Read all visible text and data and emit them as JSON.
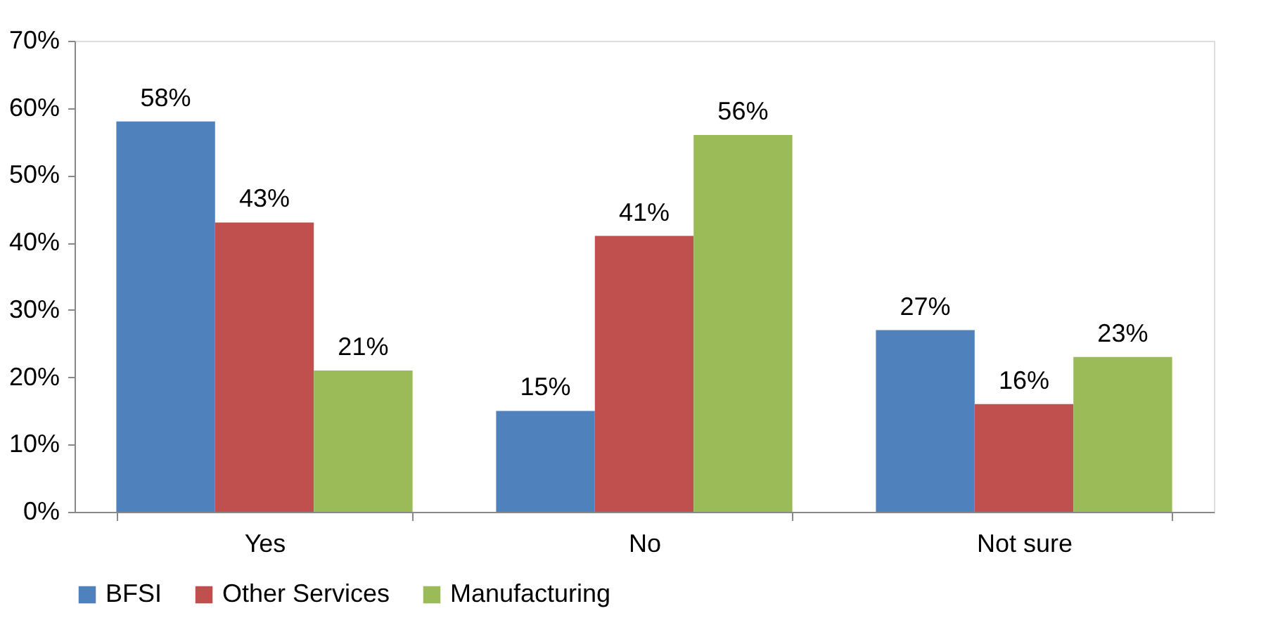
{
  "chart_data": {
    "type": "bar",
    "categories": [
      "Yes",
      "No",
      "Not sure"
    ],
    "series": [
      {
        "name": "BFSI",
        "color": "#4f81bd",
        "values": [
          58,
          15,
          27
        ]
      },
      {
        "name": "Other Services",
        "color": "#c0504d",
        "values": [
          43,
          41,
          16
        ]
      },
      {
        "name": "Manufacturing",
        "color": "#9bbb59",
        "values": [
          21,
          56,
          23
        ]
      }
    ],
    "value_labels": [
      [
        "58%",
        "15%",
        "27%"
      ],
      [
        "43%",
        "41%",
        "16%"
      ],
      [
        "21%",
        "56%",
        "23%"
      ]
    ],
    "ylim": [
      0,
      70
    ],
    "yticks": [
      {
        "value": 0,
        "label": "0%"
      },
      {
        "value": 10,
        "label": "10%"
      },
      {
        "value": 20,
        "label": "20%"
      },
      {
        "value": 30,
        "label": "30%"
      },
      {
        "value": 40,
        "label": "40%"
      },
      {
        "value": 50,
        "label": "50%"
      },
      {
        "value": 60,
        "label": "60%"
      },
      {
        "value": 70,
        "label": "70%"
      }
    ],
    "grid": false,
    "legend": "bottom"
  }
}
